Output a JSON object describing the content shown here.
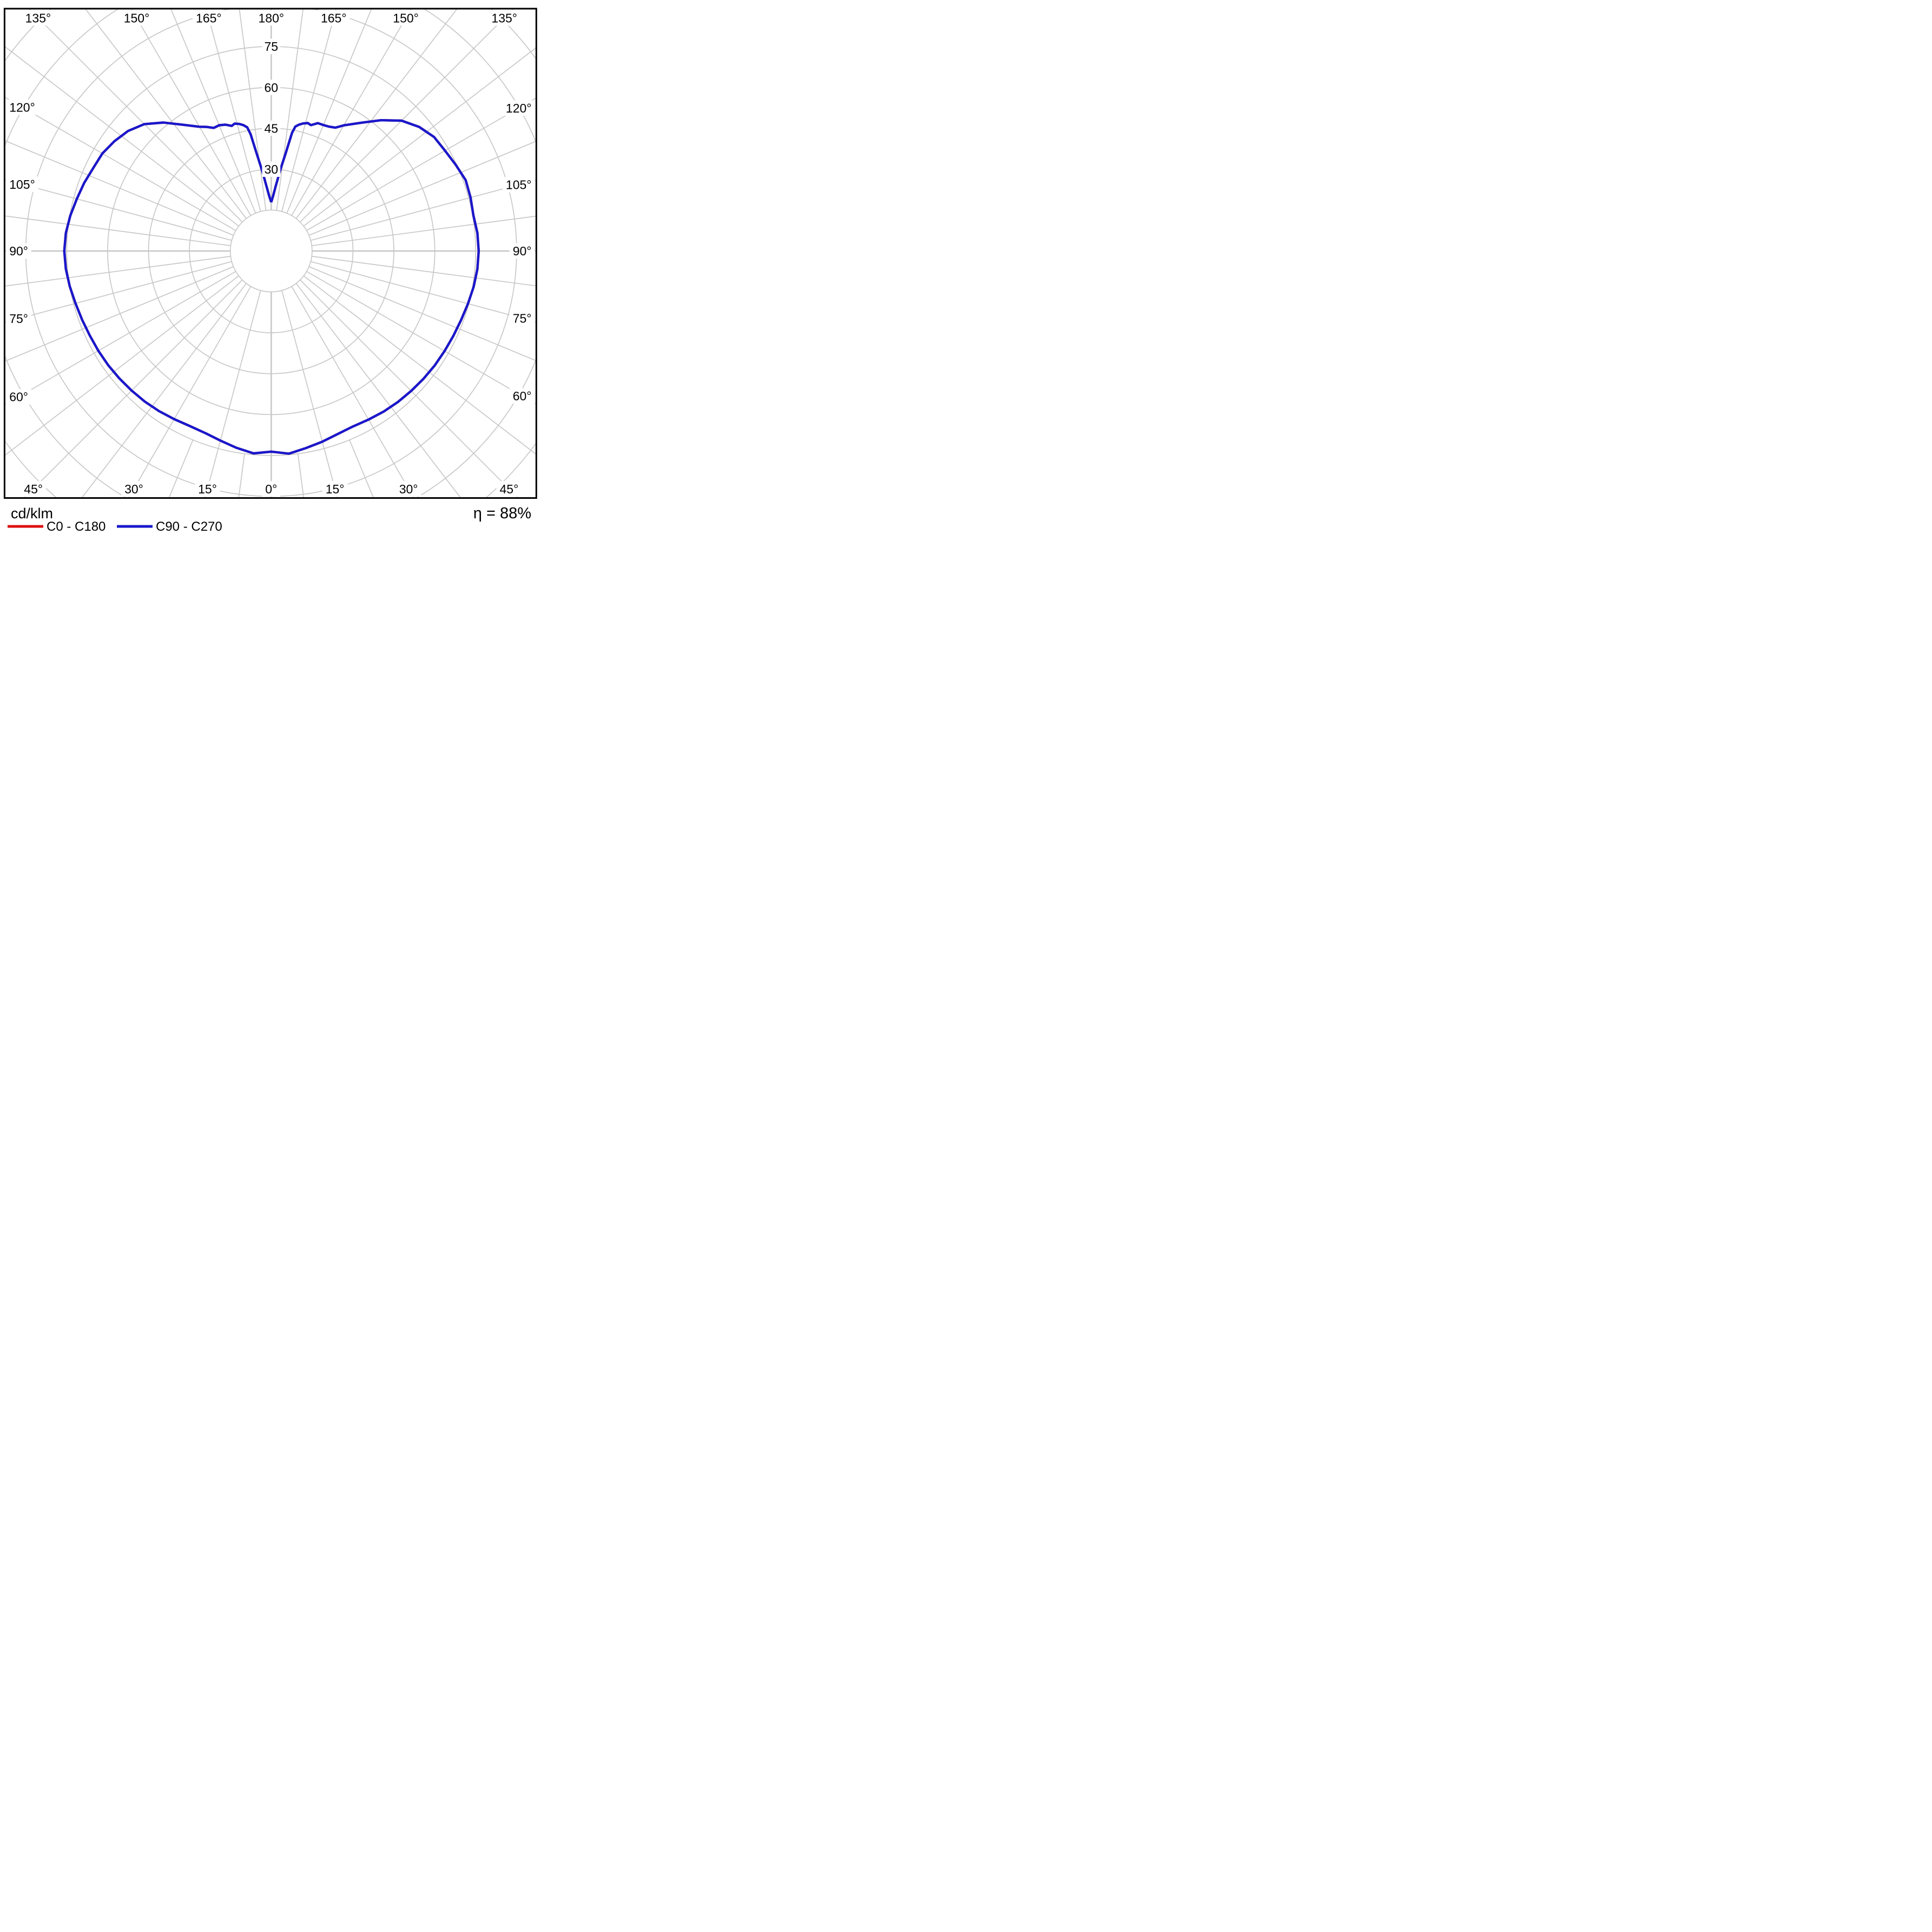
{
  "figure": {
    "unit_label": "cd/klm",
    "efficiency_label": "η = 88%",
    "legend": [
      {
        "label": "C0 - C180",
        "color": "#dd1111"
      },
      {
        "label": "C90 - C270",
        "color": "#1818cc"
      }
    ]
  },
  "chart_data": {
    "type": "line",
    "polar": true,
    "title": "",
    "xlabel": "",
    "ylabel": "cd/klm",
    "angle_axis": {
      "unit": "deg",
      "zero_direction": "down",
      "label_step": 15,
      "minor_spoke_step": 7.5,
      "labels_deg": [
        0,
        15,
        30,
        45,
        60,
        75,
        90,
        105,
        120,
        135,
        150,
        165,
        180
      ],
      "labeled_both_sides": true
    },
    "radial_axis": {
      "unit": "cd/klm",
      "ring_step": 15,
      "rings": [
        15,
        30,
        45,
        60,
        75,
        90,
        105,
        120
      ],
      "labeled_rings": [
        30,
        45,
        60,
        75
      ],
      "max_visible_ring": 90
    },
    "grid": {
      "on": true,
      "color": "#c8c8c8"
    },
    "legend_position": "bottom-left",
    "efficiency": "88%",
    "series": [
      {
        "name": "C0 - C180",
        "color": "#dd1111",
        "note": "coincides with C90 - C270 curve (drawn underneath, not visible)",
        "points_same_as": "C90 - C270"
      },
      {
        "name": "C90 - C270",
        "color": "#1818cc",
        "points": [
          [
            -180,
            17.9
          ],
          [
            -178,
            20.0
          ],
          [
            -176,
            23.5
          ],
          [
            -173.5,
            29.8
          ],
          [
            -171.5,
            36.2
          ],
          [
            -170,
            43.5
          ],
          [
            -169,
            46.2
          ],
          [
            -167.5,
            47.3
          ],
          [
            -166,
            48.0
          ],
          [
            -164,
            48.6
          ],
          [
            -162.5,
            48.1
          ],
          [
            -160,
            49.3
          ],
          [
            -157.5,
            49.9
          ],
          [
            -155,
            49.8
          ],
          [
            -152.5,
            51.3
          ],
          [
            -150,
            52.6
          ],
          [
            -145,
            56.5
          ],
          [
            -140,
            61.5
          ],
          [
            -135,
            65.8
          ],
          [
            -130,
            68.5
          ],
          [
            -125,
            70.2
          ],
          [
            -120,
            71.5
          ],
          [
            -115,
            72.0
          ],
          [
            -110,
            73.0
          ],
          [
            -105,
            73.8
          ],
          [
            -100,
            74.8
          ],
          [
            -95,
            75.6
          ],
          [
            -90,
            75.9
          ],
          [
            -85,
            75.6
          ],
          [
            -80,
            75.0
          ],
          [
            -75,
            74.3
          ],
          [
            -70,
            73.8
          ],
          [
            -65,
            73.4
          ],
          [
            -60,
            73.2
          ],
          [
            -55,
            73.0
          ],
          [
            -50,
            72.7
          ],
          [
            -45,
            72.4
          ],
          [
            -40,
            72.1
          ],
          [
            -35,
            71.7
          ],
          [
            -30,
            71.2
          ],
          [
            -25,
            70.8
          ],
          [
            -20,
            71.0
          ],
          [
            -15,
            72.0
          ],
          [
            -10,
            73.3
          ],
          [
            -5,
            74.5
          ],
          [
            0,
            73.6
          ],
          [
            5,
            74.6
          ],
          [
            10,
            73.4
          ],
          [
            15,
            72.4
          ],
          [
            20,
            71.4
          ],
          [
            25,
            71.0
          ],
          [
            30,
            71.4
          ],
          [
            35,
            71.9
          ],
          [
            40,
            72.3
          ],
          [
            45,
            72.6
          ],
          [
            50,
            72.9
          ],
          [
            55,
            73.2
          ],
          [
            60,
            73.4
          ],
          [
            65,
            73.7
          ],
          [
            70,
            74.1
          ],
          [
            75,
            74.7
          ],
          [
            80,
            75.4
          ],
          [
            85,
            75.9
          ],
          [
            90,
            76.1
          ],
          [
            95,
            75.9
          ],
          [
            100,
            75.3
          ],
          [
            105,
            75.7
          ],
          [
            110,
            75.9
          ],
          [
            115,
            74.7
          ],
          [
            120,
            73.6
          ],
          [
            125,
            72.9
          ],
          [
            130,
            70.8
          ],
          [
            135,
            67.6
          ],
          [
            140,
            62.6
          ],
          [
            145,
            57.4
          ],
          [
            150,
            53.2
          ],
          [
            152.5,
            51.0
          ],
          [
            155,
            50.3
          ],
          [
            157.5,
            50.0
          ],
          [
            160,
            49.9
          ],
          [
            162.5,
            48.4
          ],
          [
            164,
            48.8
          ],
          [
            166,
            48.2
          ],
          [
            167.5,
            47.5
          ],
          [
            169,
            46.5
          ],
          [
            170,
            44.0
          ],
          [
            171.5,
            36.6
          ],
          [
            173.5,
            30.2
          ],
          [
            176,
            23.9
          ],
          [
            178,
            20.3
          ],
          [
            180,
            17.9
          ]
        ]
      }
    ]
  }
}
